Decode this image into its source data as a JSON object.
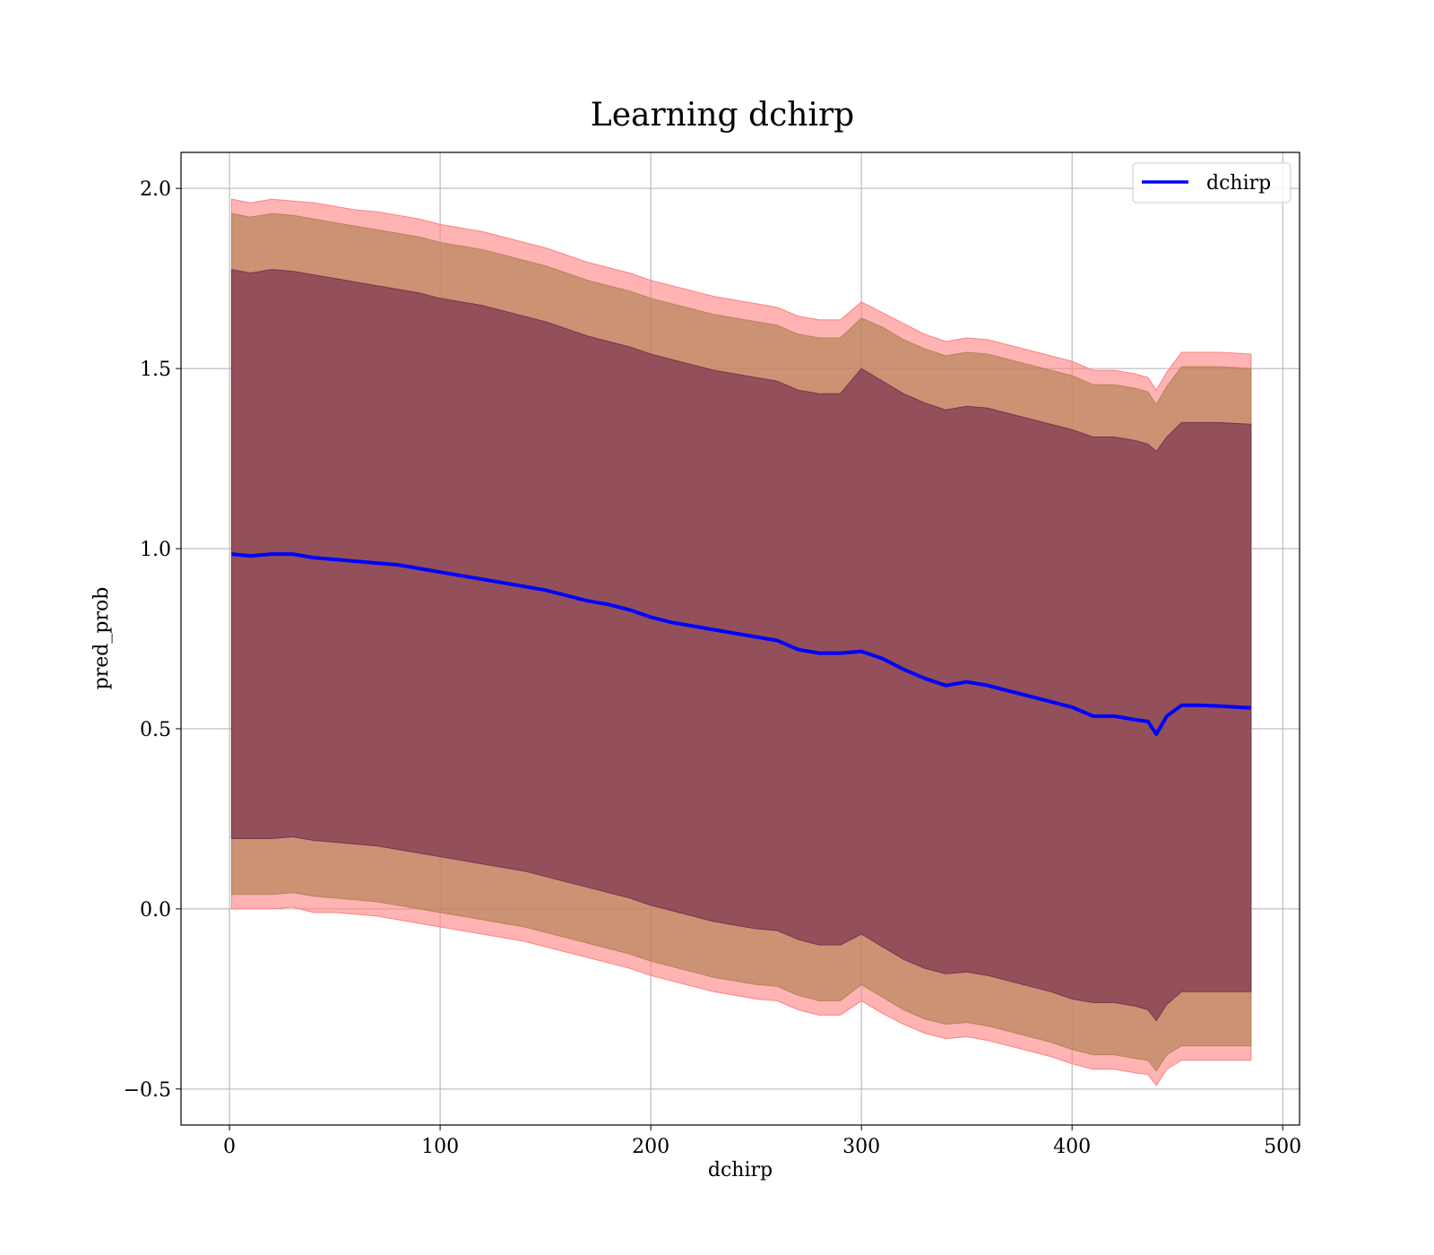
{
  "chart_data": {
    "type": "line",
    "title": "Learning dchirp",
    "xlabel": "dchirp",
    "ylabel": "pred_prob",
    "xlim": [
      -23,
      508
    ],
    "ylim": [
      -0.6,
      2.1
    ],
    "xticks": [
      0,
      100,
      200,
      300,
      400,
      500
    ],
    "xtick_labels": [
      "0",
      "100",
      "200",
      "300",
      "400",
      "500"
    ],
    "yticks": [
      -0.5,
      0.0,
      0.5,
      1.0,
      1.5,
      2.0
    ],
    "ytick_labels": [
      "−0.5",
      "0.0",
      "0.5",
      "1.0",
      "1.5",
      "2.0"
    ],
    "grid": true,
    "legend": {
      "position": "top-right",
      "entries": [
        "dchirp"
      ]
    },
    "series": [
      {
        "name": "dchirp",
        "color": "#0000ff",
        "x": [
          1,
          10,
          20,
          30,
          40,
          50,
          60,
          70,
          80,
          90,
          100,
          110,
          120,
          130,
          140,
          150,
          160,
          170,
          180,
          190,
          200,
          210,
          220,
          230,
          240,
          250,
          260,
          270,
          280,
          290,
          300,
          310,
          320,
          330,
          340,
          350,
          360,
          370,
          380,
          390,
          400,
          410,
          420,
          430,
          436,
          440,
          445,
          452,
          460,
          470,
          485
        ],
        "y": [
          0.985,
          0.98,
          0.985,
          0.985,
          0.975,
          0.97,
          0.965,
          0.96,
          0.955,
          0.945,
          0.935,
          0.925,
          0.915,
          0.905,
          0.895,
          0.885,
          0.87,
          0.855,
          0.845,
          0.83,
          0.81,
          0.795,
          0.785,
          0.775,
          0.765,
          0.755,
          0.745,
          0.72,
          0.71,
          0.71,
          0.715,
          0.695,
          0.665,
          0.64,
          0.62,
          0.63,
          0.62,
          0.605,
          0.59,
          0.575,
          0.56,
          0.535,
          0.535,
          0.525,
          0.52,
          0.485,
          0.535,
          0.565,
          0.565,
          0.563,
          0.558
        ]
      }
    ],
    "bands": [
      {
        "name": "outer",
        "color": "#ff8080",
        "upper": [
          1.97,
          1.96,
          1.97,
          1.965,
          1.96,
          1.95,
          1.94,
          1.935,
          1.925,
          1.915,
          1.9,
          1.89,
          1.88,
          1.865,
          1.85,
          1.835,
          1.815,
          1.795,
          1.78,
          1.765,
          1.745,
          1.73,
          1.715,
          1.7,
          1.69,
          1.68,
          1.67,
          1.645,
          1.635,
          1.635,
          1.685,
          1.655,
          1.625,
          1.595,
          1.575,
          1.585,
          1.58,
          1.565,
          1.55,
          1.535,
          1.52,
          1.495,
          1.495,
          1.485,
          1.475,
          1.44,
          1.49,
          1.545,
          1.545,
          1.545,
          1.54
        ],
        "lower": [
          0.0,
          0.0,
          0.0,
          0.005,
          -0.01,
          -0.01,
          -0.015,
          -0.02,
          -0.03,
          -0.04,
          -0.05,
          -0.06,
          -0.07,
          -0.08,
          -0.09,
          -0.105,
          -0.12,
          -0.135,
          -0.15,
          -0.165,
          -0.185,
          -0.2,
          -0.215,
          -0.23,
          -0.24,
          -0.25,
          -0.255,
          -0.28,
          -0.295,
          -0.295,
          -0.255,
          -0.29,
          -0.32,
          -0.345,
          -0.36,
          -0.355,
          -0.365,
          -0.38,
          -0.395,
          -0.41,
          -0.43,
          -0.445,
          -0.445,
          -0.455,
          -0.46,
          -0.49,
          -0.445,
          -0.42,
          -0.42,
          -0.42,
          -0.42
        ]
      },
      {
        "name": "middle",
        "color": "#b5845a",
        "upper": [
          1.93,
          1.92,
          1.93,
          1.925,
          1.915,
          1.905,
          1.895,
          1.885,
          1.875,
          1.865,
          1.85,
          1.84,
          1.83,
          1.815,
          1.8,
          1.785,
          1.765,
          1.745,
          1.73,
          1.715,
          1.695,
          1.68,
          1.665,
          1.65,
          1.64,
          1.63,
          1.62,
          1.595,
          1.585,
          1.585,
          1.64,
          1.615,
          1.58,
          1.555,
          1.535,
          1.545,
          1.54,
          1.525,
          1.51,
          1.495,
          1.48,
          1.455,
          1.455,
          1.445,
          1.435,
          1.4,
          1.45,
          1.505,
          1.505,
          1.505,
          1.5
        ],
        "lower": [
          0.04,
          0.04,
          0.04,
          0.045,
          0.035,
          0.03,
          0.025,
          0.02,
          0.01,
          0.0,
          -0.01,
          -0.02,
          -0.03,
          -0.04,
          -0.05,
          -0.065,
          -0.08,
          -0.095,
          -0.11,
          -0.125,
          -0.145,
          -0.16,
          -0.175,
          -0.19,
          -0.2,
          -0.21,
          -0.215,
          -0.24,
          -0.255,
          -0.255,
          -0.21,
          -0.245,
          -0.28,
          -0.305,
          -0.32,
          -0.315,
          -0.325,
          -0.34,
          -0.355,
          -0.37,
          -0.39,
          -0.405,
          -0.405,
          -0.415,
          -0.42,
          -0.45,
          -0.405,
          -0.38,
          -0.38,
          -0.38,
          -0.38
        ]
      },
      {
        "name": "inner",
        "color": "#7a3450",
        "upper": [
          1.775,
          1.765,
          1.775,
          1.77,
          1.76,
          1.75,
          1.74,
          1.73,
          1.72,
          1.71,
          1.695,
          1.685,
          1.675,
          1.66,
          1.645,
          1.63,
          1.61,
          1.59,
          1.575,
          1.56,
          1.54,
          1.525,
          1.51,
          1.495,
          1.485,
          1.475,
          1.465,
          1.44,
          1.43,
          1.43,
          1.5,
          1.465,
          1.43,
          1.405,
          1.385,
          1.395,
          1.39,
          1.375,
          1.36,
          1.345,
          1.33,
          1.31,
          1.31,
          1.3,
          1.29,
          1.27,
          1.31,
          1.35,
          1.35,
          1.35,
          1.345
        ],
        "lower": [
          0.195,
          0.195,
          0.195,
          0.2,
          0.19,
          0.185,
          0.18,
          0.175,
          0.165,
          0.155,
          0.145,
          0.135,
          0.125,
          0.115,
          0.105,
          0.09,
          0.075,
          0.06,
          0.045,
          0.03,
          0.01,
          -0.005,
          -0.02,
          -0.035,
          -0.045,
          -0.055,
          -0.06,
          -0.085,
          -0.1,
          -0.1,
          -0.07,
          -0.105,
          -0.14,
          -0.165,
          -0.18,
          -0.175,
          -0.185,
          -0.2,
          -0.215,
          -0.23,
          -0.25,
          -0.26,
          -0.26,
          -0.27,
          -0.28,
          -0.31,
          -0.265,
          -0.23,
          -0.23,
          -0.23,
          -0.23
        ]
      }
    ]
  }
}
